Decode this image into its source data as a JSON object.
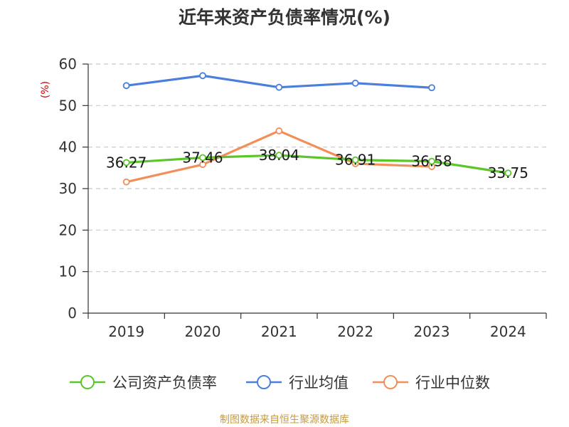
{
  "chart_data": {
    "type": "line",
    "title": "近年来资产负债率情况(%)",
    "ylabel": "(%)",
    "xlabel": "",
    "categories": [
      "2019",
      "2020",
      "2021",
      "2022",
      "2023",
      "2024"
    ],
    "ylim": [
      0,
      60
    ],
    "yticks": [
      0,
      10,
      20,
      30,
      40,
      50,
      60
    ],
    "grid": true,
    "legend_position": "bottom",
    "series": [
      {
        "name": "公司资产负债率",
        "color": "#5bc52a",
        "values": [
          36.27,
          37.46,
          38.04,
          36.91,
          36.58,
          33.75
        ],
        "show_labels": true
      },
      {
        "name": "行业均值",
        "color": "#4a7fdb",
        "values": [
          54.8,
          57.2,
          54.4,
          55.4,
          54.3,
          null
        ],
        "show_labels": false
      },
      {
        "name": "行业中位数",
        "color": "#f28e5a",
        "values": [
          31.6,
          35.8,
          43.9,
          36.0,
          35.3,
          null
        ],
        "show_labels": false
      }
    ]
  },
  "source": "制图数据来自恒生聚源数据库",
  "colors": {
    "unit_label": "#cc0000",
    "source": "#c89a3c",
    "grid": "#c8c8c8",
    "axis": "#333333"
  }
}
